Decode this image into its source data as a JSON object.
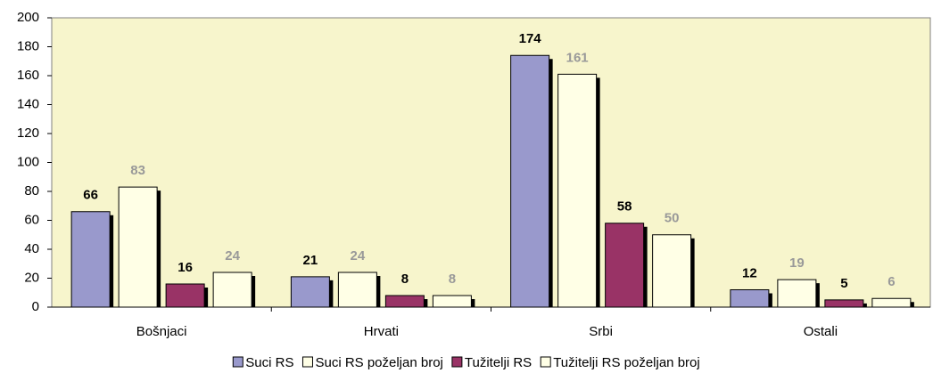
{
  "chart_data": {
    "type": "bar",
    "categories": [
      "Bošnjaci",
      "Hrvati",
      "Srbi",
      "Ostali"
    ],
    "series": [
      {
        "name": "Suci RS",
        "color": "#9999cc",
        "label_color": "#000000",
        "values": [
          66,
          21,
          174,
          12
        ]
      },
      {
        "name": "Suci RS poželjan broj",
        "color": "#ffffe6",
        "label_color": "#999999",
        "values": [
          83,
          24,
          161,
          19
        ]
      },
      {
        "name": "Tužitelji RS",
        "color": "#993366",
        "label_color": "#000000",
        "values": [
          16,
          8,
          58,
          5
        ]
      },
      {
        "name": "Tužitelji RS poželjan broj",
        "color": "#ffffe6",
        "label_color": "#999999",
        "values": [
          24,
          8,
          50,
          6
        ]
      }
    ],
    "ylim": [
      0,
      200
    ],
    "yticks": [
      0,
      20,
      40,
      60,
      80,
      100,
      120,
      140,
      160,
      180,
      200
    ],
    "plot_background": "#f7f5cc",
    "legend": "bottom"
  }
}
